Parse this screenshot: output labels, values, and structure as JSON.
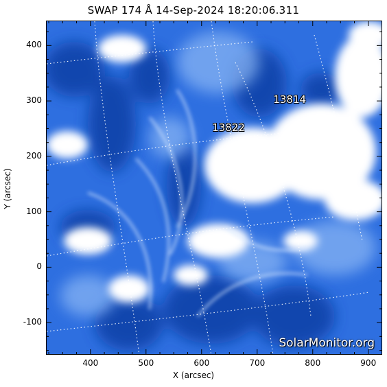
{
  "header": {
    "title": "SWAP 174 Å 14-Sep-2024 18:20:06.311"
  },
  "image": {
    "colors": {
      "base": "#2e6fe0",
      "dark": "#0a3ea8",
      "bright": "#ffffff",
      "light": "#b7d3ff"
    }
  },
  "regions": [
    {
      "id": "13814",
      "x": 755,
      "y": 302
    },
    {
      "id": "13822",
      "x": 645,
      "y": 252
    }
  ],
  "axes": {
    "xlabel": "X (arcsec)",
    "ylabel": "Y (arcsec)",
    "xlim": [
      320,
      925
    ],
    "ylim": [
      -158,
      445
    ],
    "xticks": [
      400,
      500,
      600,
      700,
      800,
      900
    ],
    "yticks": [
      -100,
      0,
      100,
      200,
      300,
      400
    ]
  },
  "watermark": "SolarMonitor.org"
}
